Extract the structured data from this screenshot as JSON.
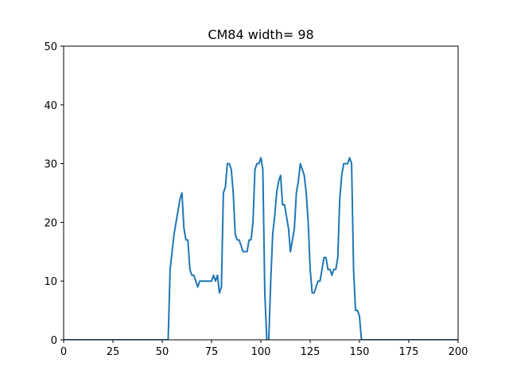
{
  "chart_data": {
    "type": "line",
    "title": "CM84 width= 98",
    "xlabel": "",
    "ylabel": "",
    "xlim": [
      0,
      200
    ],
    "ylim": [
      0,
      50
    ],
    "xticks": [
      0,
      25,
      50,
      75,
      100,
      125,
      150,
      175,
      200
    ],
    "yticks": [
      0,
      10,
      20,
      30,
      40,
      50
    ],
    "xtick_labels": [
      "0",
      "25",
      "50",
      "75",
      "100",
      "125",
      "150",
      "175",
      "200"
    ],
    "ytick_labels": [
      "0",
      "10",
      "20",
      "30",
      "40",
      "50"
    ],
    "grid": false,
    "series": [
      {
        "color": "#1f77b4",
        "x": [
          0,
          52,
          53,
          54,
          55,
          56,
          57,
          58,
          59,
          60,
          61,
          62,
          63,
          64,
          65,
          66,
          67,
          68,
          69,
          70,
          71,
          72,
          73,
          74,
          75,
          76,
          77,
          78,
          79,
          80,
          81,
          82,
          83,
          84,
          85,
          86,
          87,
          88,
          89,
          90,
          91,
          92,
          93,
          94,
          95,
          96,
          97,
          98,
          99,
          100,
          101,
          102,
          103,
          104,
          105,
          106,
          107,
          108,
          109,
          110,
          111,
          112,
          113,
          114,
          115,
          116,
          117,
          118,
          119,
          120,
          121,
          122,
          123,
          124,
          125,
          126,
          127,
          128,
          129,
          130,
          131,
          132,
          133,
          134,
          135,
          136,
          137,
          138,
          139,
          140,
          141,
          142,
          143,
          144,
          145,
          146,
          147,
          148,
          149,
          150,
          151,
          200
        ],
        "y": [
          0,
          0,
          0,
          12,
          15,
          18,
          20,
          22,
          24,
          25,
          19,
          17,
          17,
          12,
          11,
          11,
          10,
          9,
          10,
          10,
          10,
          10,
          10,
          10,
          10,
          11,
          10,
          11,
          8,
          9,
          25,
          26,
          30,
          30,
          29,
          25,
          18,
          17,
          17,
          16,
          15,
          15,
          15,
          17,
          17,
          20,
          29,
          30,
          30,
          31,
          29,
          8,
          0,
          0,
          10,
          18,
          21,
          25,
          27,
          28,
          23,
          23,
          21,
          19,
          15,
          17,
          19,
          25,
          27,
          30,
          29,
          28,
          25,
          20,
          12,
          8,
          8,
          9,
          10,
          10,
          12,
          14,
          14,
          12,
          12,
          11,
          12,
          12,
          14,
          24,
          28,
          30,
          30,
          30,
          31,
          30,
          12,
          5,
          5,
          4,
          0,
          0
        ]
      }
    ]
  }
}
